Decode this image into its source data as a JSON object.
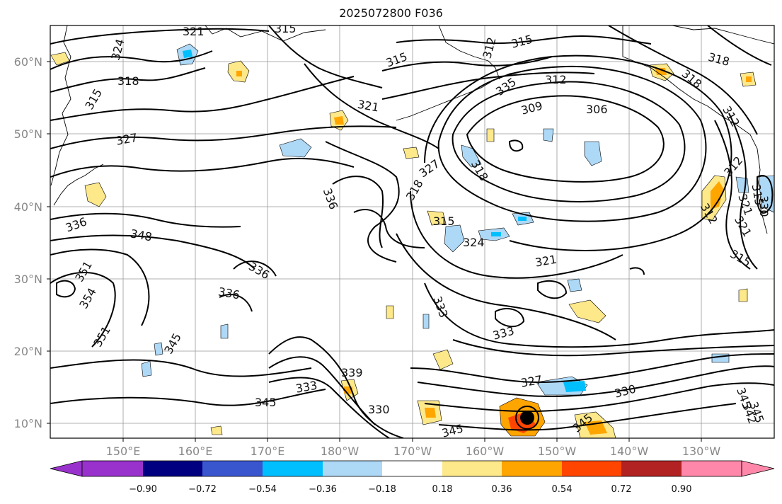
{
  "title": "2025072800 F036",
  "map": {
    "lat_labels": [
      "60°N",
      "50°N",
      "40°N",
      "30°N",
      "20°N",
      "10°N"
    ],
    "lon_labels": [
      "150°E",
      "160°E",
      "170°E",
      "180°W",
      "170°W",
      "160°W",
      "150°W",
      "140°W",
      "130°W"
    ],
    "contour_labels": [
      "321",
      "315",
      "324",
      "318",
      "315",
      "312",
      "315",
      "312",
      "318",
      "318",
      "335",
      "312",
      "315",
      "321",
      "309",
      "306",
      "318",
      "327",
      "327",
      "318",
      "321",
      "312",
      "315",
      "336",
      "315",
      "312",
      "336",
      "348",
      "324",
      "321",
      "330",
      "351",
      "354",
      "336",
      "336",
      "333",
      "321",
      "315",
      "333",
      "345",
      "339",
      "333",
      "327",
      "330",
      "330",
      "351",
      "345",
      "345",
      "345",
      "345",
      "345",
      "342"
    ]
  },
  "colorbar": {
    "tick_labels": [
      "−0.90",
      "−0.72",
      "−0.54",
      "−0.36",
      "−0.18",
      "0.18",
      "0.36",
      "0.54",
      "0.72",
      "0.90"
    ],
    "colors": [
      "#9932CC",
      "#000080",
      "#3A56CF",
      "#00BFFF",
      "#ADD8F6",
      "#FFFFFF",
      "#FDE88A",
      "#FFA500",
      "#FF4500",
      "#B22222",
      "#FF88AA"
    ]
  }
}
